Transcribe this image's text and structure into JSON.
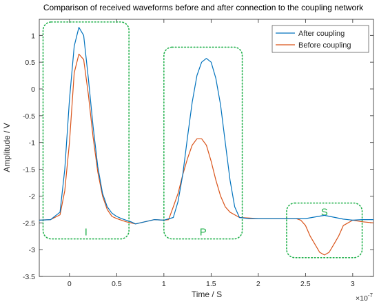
{
  "chart_data": {
    "type": "line",
    "title": "Comparison of received waveforms before and after connection to the coupling network",
    "xlabel": "Time / S",
    "ylabel": "Amplitude / V",
    "x_exponent_label": "×10",
    "x_exponent_power": "-7",
    "xlim": [
      -0.32,
      3.22
    ],
    "ylim": [
      -3.5,
      1.3
    ],
    "x_ticks": [
      0,
      0.5,
      1,
      1.5,
      2,
      2.5,
      3
    ],
    "x_tick_labels": [
      "0",
      "0.5",
      "1",
      "1.5",
      "2",
      "2.5",
      "3"
    ],
    "y_ticks": [
      -3.5,
      -3,
      -2.5,
      -2,
      -1.5,
      -1,
      -0.5,
      0,
      0.5,
      1
    ],
    "y_tick_labels": [
      "-3.5",
      "-3",
      "-2.5",
      "-2",
      "-1.5",
      "-1",
      "-0.5",
      "0",
      "0.5",
      "1"
    ],
    "grid": false,
    "legend_position": "top-right",
    "colors": {
      "after": "#0072BD",
      "before": "#D95319",
      "region_box": "#22B14C",
      "region_label": "#22B14C"
    },
    "series": [
      {
        "name": "After coupling",
        "x": [
          -0.32,
          -0.2,
          -0.1,
          -0.05,
          0,
          0.05,
          0.1,
          0.15,
          0.2,
          0.25,
          0.3,
          0.35,
          0.4,
          0.45,
          0.5,
          0.55,
          0.6,
          0.65,
          0.7,
          0.8,
          0.9,
          1.0,
          1.1,
          1.15,
          1.2,
          1.25,
          1.3,
          1.35,
          1.4,
          1.45,
          1.5,
          1.55,
          1.6,
          1.65,
          1.7,
          1.75,
          1.8,
          1.9,
          2.0,
          2.2,
          2.4,
          2.5,
          2.7,
          2.9,
          3.0,
          3.1,
          3.22
        ],
        "y": [
          -2.45,
          -2.44,
          -2.3,
          -1.5,
          -0.2,
          0.8,
          1.15,
          1.0,
          0.2,
          -0.7,
          -1.45,
          -1.95,
          -2.2,
          -2.32,
          -2.38,
          -2.42,
          -2.45,
          -2.48,
          -2.52,
          -2.48,
          -2.44,
          -2.45,
          -2.4,
          -2.1,
          -1.6,
          -0.9,
          -0.25,
          0.25,
          0.5,
          0.57,
          0.5,
          0.2,
          -0.3,
          -1.0,
          -1.7,
          -2.2,
          -2.4,
          -2.42,
          -2.42,
          -2.42,
          -2.42,
          -2.42,
          -2.36,
          -2.43,
          -2.45,
          -2.44,
          -2.44
        ]
      },
      {
        "name": "Before coupling",
        "x": [
          -0.32,
          -0.2,
          -0.1,
          -0.05,
          0,
          0.05,
          0.1,
          0.15,
          0.2,
          0.25,
          0.3,
          0.35,
          0.4,
          0.45,
          0.5,
          0.55,
          0.6,
          0.65,
          0.7,
          0.8,
          0.9,
          1.0,
          1.05,
          1.1,
          1.15,
          1.2,
          1.25,
          1.3,
          1.35,
          1.4,
          1.45,
          1.5,
          1.55,
          1.6,
          1.65,
          1.7,
          1.75,
          1.8,
          2.0,
          2.2,
          2.4,
          2.45,
          2.5,
          2.55,
          2.6,
          2.65,
          2.7,
          2.75,
          2.8,
          2.85,
          2.9,
          3.0,
          3.1,
          3.22
        ],
        "y": [
          -2.45,
          -2.44,
          -2.35,
          -1.9,
          -1.0,
          0.3,
          0.65,
          0.55,
          -0.1,
          -0.9,
          -1.55,
          -2.0,
          -2.25,
          -2.38,
          -2.42,
          -2.45,
          -2.48,
          -2.5,
          -2.52,
          -2.48,
          -2.44,
          -2.45,
          -2.44,
          -2.2,
          -1.95,
          -1.6,
          -1.3,
          -1.05,
          -0.93,
          -0.93,
          -1.05,
          -1.35,
          -1.7,
          -2.0,
          -2.2,
          -2.3,
          -2.35,
          -2.4,
          -2.42,
          -2.42,
          -2.42,
          -2.45,
          -2.55,
          -2.75,
          -2.9,
          -3.05,
          -3.1,
          -3.05,
          -2.9,
          -2.75,
          -2.55,
          -2.45,
          -2.48,
          -2.5
        ]
      }
    ],
    "regions": [
      {
        "label": "I",
        "x_range": [
          -0.28,
          0.63
        ],
        "y_range": [
          -2.8,
          1.25
        ]
      },
      {
        "label": "P",
        "x_range": [
          1.0,
          1.83
        ],
        "y_range": [
          -2.8,
          0.78
        ]
      },
      {
        "label": "S",
        "x_range": [
          2.3,
          3.1
        ],
        "y_range": [
          -3.15,
          -2.13
        ]
      }
    ]
  }
}
